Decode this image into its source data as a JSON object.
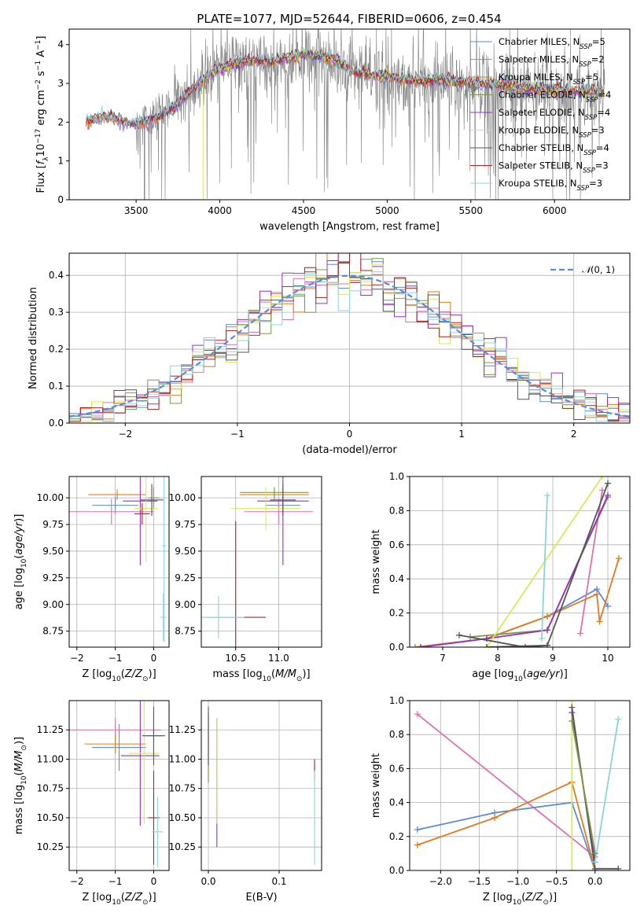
{
  "figure_title": "PLATE=1077, MJD=52644, FIBERID=0606, z=0.454",
  "colors": {
    "chabrier_miles": "#5b8bd9",
    "salpeter_miles": "#e06fb0",
    "kroupa_miles": "#e07b20",
    "chabrier_elodie": "#7a9a4a",
    "salpeter_elodie": "#9b30c0",
    "kroupa_elodie": "#d9e856",
    "chabrier_stelib": "#555555",
    "salpeter_stelib": "#b22222",
    "kroupa_stelib": "#8ad4e0",
    "data": "#808080",
    "normal": "#5b8bd9"
  },
  "chart_data": [
    {
      "id": "spectrum",
      "type": "line",
      "title": "PLATE=1077, MJD=52644, FIBERID=0606, z=0.454",
      "xlabel": "wavelength [Angstrom, rest frame]",
      "ylabel": "Flux [f_λ 10^-17 erg cm^-2 s^-1 A^-1]",
      "xlim": [
        3100,
        6450
      ],
      "ylim": [
        0,
        4.4
      ],
      "xticks": [
        3500,
        4000,
        4500,
        5000,
        5500,
        6000
      ],
      "yticks": [
        0,
        1,
        2,
        3,
        4
      ],
      "grid": false,
      "legend_location": "upper right",
      "legend": [
        "Chabrier MILES, N_SSP=5",
        "Salpeter MILES, N_SSP=2",
        "Kroupa MILES, N_SSP=5",
        "Chabrier ELODIE, N_SSP=4",
        "Salpeter ELODIE, N_SSP=4",
        "Kroupa ELODIE, N_SSP=3",
        "Chabrier STELIB, N_SSP=4",
        "Salpeter STELIB, N_SSP=3",
        "Kroupa STELIB, N_SSP=3"
      ],
      "model_continuum": {
        "x": [
          3200,
          3300,
          3400,
          3500,
          3600,
          3700,
          3800,
          3900,
          4000,
          4100,
          4200,
          4300,
          4400,
          4500,
          4600,
          4700,
          4800,
          4900,
          5000,
          5100,
          5200,
          5300,
          5400,
          5500,
          5600,
          5700,
          5800,
          5900,
          6000,
          6100,
          6200,
          6300
        ],
        "y": [
          2.0,
          2.15,
          2.05,
          1.95,
          2.1,
          2.3,
          2.7,
          3.1,
          3.4,
          3.5,
          3.6,
          3.55,
          3.65,
          3.75,
          3.7,
          3.6,
          3.3,
          3.2,
          3.2,
          3.1,
          3.05,
          3.1,
          3.05,
          3.0,
          3.0,
          2.95,
          2.9,
          2.85,
          2.85,
          2.8,
          2.8,
          2.75
        ]
      },
      "model_start_x": {
        "miles": 3200,
        "elodie": 3550,
        "stelib": 3200,
        "elodie_kroupa": 3900
      },
      "data_noise_amplitude": 0.6
    },
    {
      "id": "residuals",
      "type": "bar",
      "xlabel": "(data-model)/error",
      "ylabel": "Normed distribution",
      "xlim": [
        -2.5,
        2.5
      ],
      "ylim": [
        0,
        0.46
      ],
      "xticks": [
        -2,
        -1,
        0,
        1,
        2
      ],
      "yticks": [
        0,
        0.1,
        0.2,
        0.3,
        0.4
      ],
      "grid": true,
      "legend_location": "upper right",
      "legend": [
        "N(0,1)"
      ],
      "bin_width": 0.1,
      "hist_noise": 0.045
    },
    {
      "id": "age_vs_Z",
      "type": "scatter",
      "xlabel": "Z [log10(Z/Z_sun)]",
      "ylabel": "age  [log10(age/yr)]",
      "xlim": [
        -2.2,
        0.4
      ],
      "ylim": [
        8.6,
        10.2
      ],
      "xticks": [
        -2,
        -1,
        0
      ],
      "yticks": [
        8.75,
        9.0,
        9.25,
        9.5,
        9.75,
        10.0
      ],
      "grid": true,
      "points": [
        {
          "model": "chabrier_miles",
          "x": -1.0,
          "y": 9.93,
          "xerr": 0.6,
          "yerr": 0.08
        },
        {
          "model": "salpeter_miles",
          "x": -1.1,
          "y": 9.87,
          "xerr": 1.1,
          "yerr": 0.12
        },
        {
          "model": "kroupa_miles",
          "x": -0.95,
          "y": 10.03,
          "xerr": 0.75,
          "yerr": 0.05
        },
        {
          "model": "chabrier_elodie",
          "x": 0.0,
          "y": 10.0,
          "xerr": 0.15,
          "yerr": 0.1
        },
        {
          "model": "salpeter_elodie",
          "x": -0.35,
          "y": 9.97,
          "xerr": 0.45,
          "yerr": 0.6
        },
        {
          "model": "kroupa_elodie",
          "x": -0.2,
          "y": 9.9,
          "xerr": 0.3,
          "yerr": 0.5
        },
        {
          "model": "chabrier_stelib",
          "x": -0.05,
          "y": 9.98,
          "xerr": 0.3,
          "yerr": 0.15
        },
        {
          "model": "salpeter_stelib",
          "x": -0.3,
          "y": 9.85,
          "xerr": 0.2,
          "yerr": 0.1
        },
        {
          "model": "kroupa_stelib",
          "x": 0.25,
          "y": 8.88,
          "xerr": 0.08,
          "yerr": 0.22
        },
        {
          "model": "kroupa_stelib",
          "x": 0.27,
          "y": 9.55,
          "xerr": 0.05,
          "yerr": 0.9
        }
      ]
    },
    {
      "id": "age_vs_mass",
      "type": "scatter",
      "xlabel": "mass [log10(M/M_sun)]",
      "ylabel": "",
      "xlim": [
        10.1,
        11.5
      ],
      "ylim": [
        8.6,
        10.2
      ],
      "xticks": [
        10.5,
        11.0
      ],
      "yticks": [
        8.75,
        9.0,
        9.25,
        9.5,
        9.75,
        10.0
      ],
      "grid": true,
      "points": [
        {
          "model": "chabrier_miles",
          "x": 11.05,
          "y": 9.93,
          "xerr": 0.2,
          "yerr": 0.08
        },
        {
          "model": "salpeter_miles",
          "x": 11.0,
          "y": 9.87,
          "xerr": 0.4,
          "yerr": 0.12
        },
        {
          "model": "kroupa_miles",
          "x": 10.95,
          "y": 10.03,
          "xerr": 0.4,
          "yerr": 0.05
        },
        {
          "model": "chabrier_elodie",
          "x": 10.95,
          "y": 10.05,
          "xerr": 0.4,
          "yerr": 0.05
        },
        {
          "model": "salpeter_elodie",
          "x": 11.05,
          "y": 9.97,
          "xerr": 0.3,
          "yerr": 0.6
        },
        {
          "model": "kroupa_elodie",
          "x": 10.85,
          "y": 9.9,
          "xerr": 0.4,
          "yerr": 0.2
        },
        {
          "model": "chabrier_stelib",
          "x": 11.05,
          "y": 9.98,
          "xerr": 0.15,
          "yerr": 0.15
        },
        {
          "model": "salpeter_stelib",
          "x": 10.5,
          "y": 8.88,
          "xerr": 0.35,
          "yerr": 0.9
        },
        {
          "model": "kroupa_stelib",
          "x": 10.3,
          "y": 8.88,
          "xerr": 0.3,
          "yerr": 0.2
        }
      ]
    },
    {
      "id": "weight_vs_age",
      "type": "line",
      "xlabel": "age  [log10(age/yr)]",
      "ylabel": "mass weight",
      "xlim": [
        6.4,
        10.4
      ],
      "ylim": [
        0,
        1.0
      ],
      "xticks": [
        7,
        8,
        9,
        10
      ],
      "yticks": [
        0,
        0.2,
        0.4,
        0.6,
        0.8,
        1.0
      ],
      "grid": true,
      "series": [
        {
          "model": "chabrier_miles",
          "x": [
            6.6,
            7.8,
            8.9,
            9.8,
            10.0
          ],
          "y": [
            0.0,
            0.05,
            0.18,
            0.34,
            0.24
          ]
        },
        {
          "model": "salpeter_miles",
          "x": [
            9.5,
            9.9
          ],
          "y": [
            0.08,
            0.92
          ]
        },
        {
          "model": "kroupa_miles",
          "x": [
            6.5,
            7.8,
            8.9,
            9.8,
            9.85,
            10.2
          ],
          "y": [
            0.0,
            0.05,
            0.18,
            0.31,
            0.15,
            0.52
          ]
        },
        {
          "model": "chabrier_elodie",
          "x": [
            7.5,
            8.9,
            10.0
          ],
          "y": [
            0.06,
            0.1,
            0.88
          ]
        },
        {
          "model": "salpeter_elodie",
          "x": [
            6.6,
            7.8,
            8.9,
            10.0
          ],
          "y": [
            0.0,
            0.05,
            0.1,
            0.89
          ]
        },
        {
          "model": "kroupa_elodie",
          "x": [
            7.8,
            9.9
          ],
          "y": [
            0.0,
            1.0
          ]
        },
        {
          "model": "chabrier_stelib",
          "x": [
            7.8,
            8.9,
            10.0
          ],
          "y": [
            0.0,
            0.01,
            0.96
          ]
        },
        {
          "model": "kroupa_stelib",
          "x": [
            8.8,
            8.9
          ],
          "y": [
            0.05,
            0.89
          ]
        },
        {
          "model": "chabrier_stelib",
          "x": [
            7.3,
            8.5,
            8.9
          ],
          "y": [
            0.07,
            0.0,
            0.01
          ]
        }
      ]
    },
    {
      "id": "mass_vs_Z",
      "type": "scatter",
      "xlabel": "Z [log10(Z/Z_sun)]",
      "ylabel": "mass [log10(M/M_sun)]",
      "xlim": [
        -2.2,
        0.4
      ],
      "ylim": [
        10.05,
        11.5
      ],
      "xticks": [
        -2,
        -1,
        0
      ],
      "yticks": [
        10.25,
        10.5,
        10.75,
        11.0,
        11.25
      ],
      "grid": true,
      "points": [
        {
          "model": "chabrier_miles",
          "x": -0.9,
          "y": 11.1,
          "xerr": 0.7,
          "yerr": 0.2
        },
        {
          "model": "salpeter_miles",
          "x": -1.0,
          "y": 11.25,
          "xerr": 1.2,
          "yerr": 0.1
        },
        {
          "model": "kroupa_miles",
          "x": -1.0,
          "y": 11.13,
          "xerr": 0.8,
          "yerr": 0.08
        },
        {
          "model": "chabrier_elodie",
          "x": 0.0,
          "y": 11.2,
          "xerr": 0.2,
          "yerr": 0.2
        },
        {
          "model": "salpeter_elodie",
          "x": -0.35,
          "y": 11.03,
          "xerr": 0.5,
          "yerr": 0.6
        },
        {
          "model": "kroupa_elodie",
          "x": -0.25,
          "y": 11.05,
          "xerr": 0.4,
          "yerr": 0.6
        },
        {
          "model": "chabrier_stelib",
          "x": 0.0,
          "y": 11.2,
          "xerr": 0.3,
          "yerr": 0.25
        },
        {
          "model": "salpeter_stelib",
          "x": 0.0,
          "y": 10.5,
          "xerr": 0.15,
          "yerr": 0.4
        },
        {
          "model": "kroupa_stelib",
          "x": 0.1,
          "y": 10.38,
          "xerr": 0.15,
          "yerr": 0.3
        }
      ]
    },
    {
      "id": "mass_vs_ebv",
      "type": "scatter",
      "xlabel": "E(B-V)",
      "ylabel": "",
      "xlim": [
        -0.01,
        0.16
      ],
      "ylim": [
        10.05,
        11.5
      ],
      "xticks": [
        0.0,
        0.1
      ],
      "yticks": [
        10.25,
        10.5,
        10.75,
        11.0,
        11.25
      ],
      "grid": true,
      "points": [
        {
          "model": "chabrier_miles",
          "x": 0.0,
          "y": 11.15,
          "xerr": 0,
          "yerr": 0.25
        },
        {
          "model": "salpeter_miles",
          "x": 0.0,
          "y": 11.2,
          "xerr": 0,
          "yerr": 0.2
        },
        {
          "model": "kroupa_miles",
          "x": 0.0,
          "y": 11.05,
          "xerr": 0,
          "yerr": 0.25
        },
        {
          "model": "chabrier_elodie",
          "x": 0.0,
          "y": 11.1,
          "xerr": 0,
          "yerr": 0.3
        },
        {
          "model": "salpeter_elodie",
          "x": 0.012,
          "y": 10.8,
          "xerr": 0,
          "yerr": 0.55
        },
        {
          "model": "kroupa_elodie",
          "x": 0.012,
          "y": 10.9,
          "xerr": 0,
          "yerr": 0.45
        },
        {
          "model": "chabrier_stelib",
          "x": 0.0,
          "y": 11.2,
          "xerr": 0,
          "yerr": 0.25
        },
        {
          "model": "salpeter_stelib",
          "x": 0.15,
          "y": 10.9,
          "xerr": 0,
          "yerr": 0.1
        },
        {
          "model": "kroupa_stelib",
          "x": 0.15,
          "y": 10.5,
          "xerr": 0,
          "yerr": 0.4
        }
      ]
    },
    {
      "id": "weight_vs_Z",
      "type": "line",
      "xlabel": "Z [log10(Z/Z_sun)]",
      "ylabel": "mass weight",
      "xlim": [
        -2.4,
        0.45
      ],
      "ylim": [
        0,
        1.0
      ],
      "xticks": [
        -2.0,
        -1.5,
        -1.0,
        -0.5,
        0.0
      ],
      "yticks": [
        0,
        0.2,
        0.4,
        0.6,
        0.8,
        1.0
      ],
      "grid": true,
      "series": [
        {
          "model": "salpeter_miles",
          "x": [
            -2.3,
            0.0
          ],
          "y": [
            0.92,
            0.08
          ]
        },
        {
          "model": "chabrier_miles",
          "x": [
            -2.3,
            -1.3,
            -0.3,
            0.0
          ],
          "y": [
            0.24,
            0.34,
            0.4,
            0.0
          ]
        },
        {
          "model": "kroupa_miles",
          "x": [
            -2.3,
            -1.3,
            -0.3,
            0.0
          ],
          "y": [
            0.15,
            0.31,
            0.52,
            0.0
          ]
        },
        {
          "model": "kroupa_elodie",
          "x": [
            -0.3,
            -0.3
          ],
          "y": [
            0.0,
            1.0
          ]
        },
        {
          "model": "salpeter_elodie",
          "x": [
            -0.3,
            0.0
          ],
          "y": [
            0.93,
            0.05
          ]
        },
        {
          "model": "chabrier_stelib",
          "x": [
            -0.3,
            0.0,
            0.3
          ],
          "y": [
            0.96,
            0.01,
            0.01
          ]
        },
        {
          "model": "kroupa_stelib",
          "x": [
            0.0,
            0.3
          ],
          "y": [
            0.05,
            0.89
          ]
        },
        {
          "model": "chabrier_elodie",
          "x": [
            -0.3,
            0.0
          ],
          "y": [
            0.88,
            0.1
          ]
        }
      ]
    }
  ]
}
